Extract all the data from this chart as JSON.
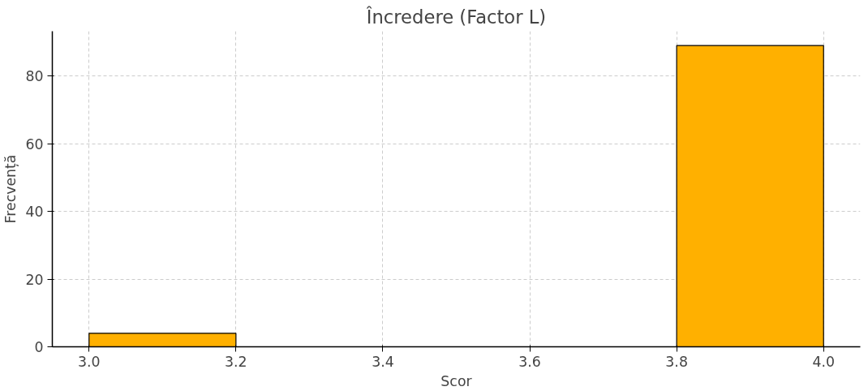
{
  "chart_data": {
    "type": "histogram",
    "title": "Încredere (Factor L)",
    "xlabel": "Scor",
    "ylabel": "Frecvență",
    "bins": [
      3.0,
      3.2,
      3.4,
      3.6,
      3.8,
      4.0
    ],
    "values": [
      4,
      0,
      0,
      0,
      89
    ],
    "color": "#ffb000",
    "xlim": [
      2.95,
      4.05
    ],
    "xticks": [
      {
        "value": 3.0,
        "label": "3.0"
      },
      {
        "value": 3.2,
        "label": "3.2"
      },
      {
        "value": 3.4,
        "label": "3.4"
      },
      {
        "value": 3.6,
        "label": "3.6"
      },
      {
        "value": 3.8,
        "label": "3.8"
      },
      {
        "value": 4.0,
        "label": "4.0"
      }
    ],
    "ylim": [
      0,
      93.2
    ],
    "yticks": [
      0,
      20,
      40,
      60,
      80
    ],
    "grid": true
  }
}
